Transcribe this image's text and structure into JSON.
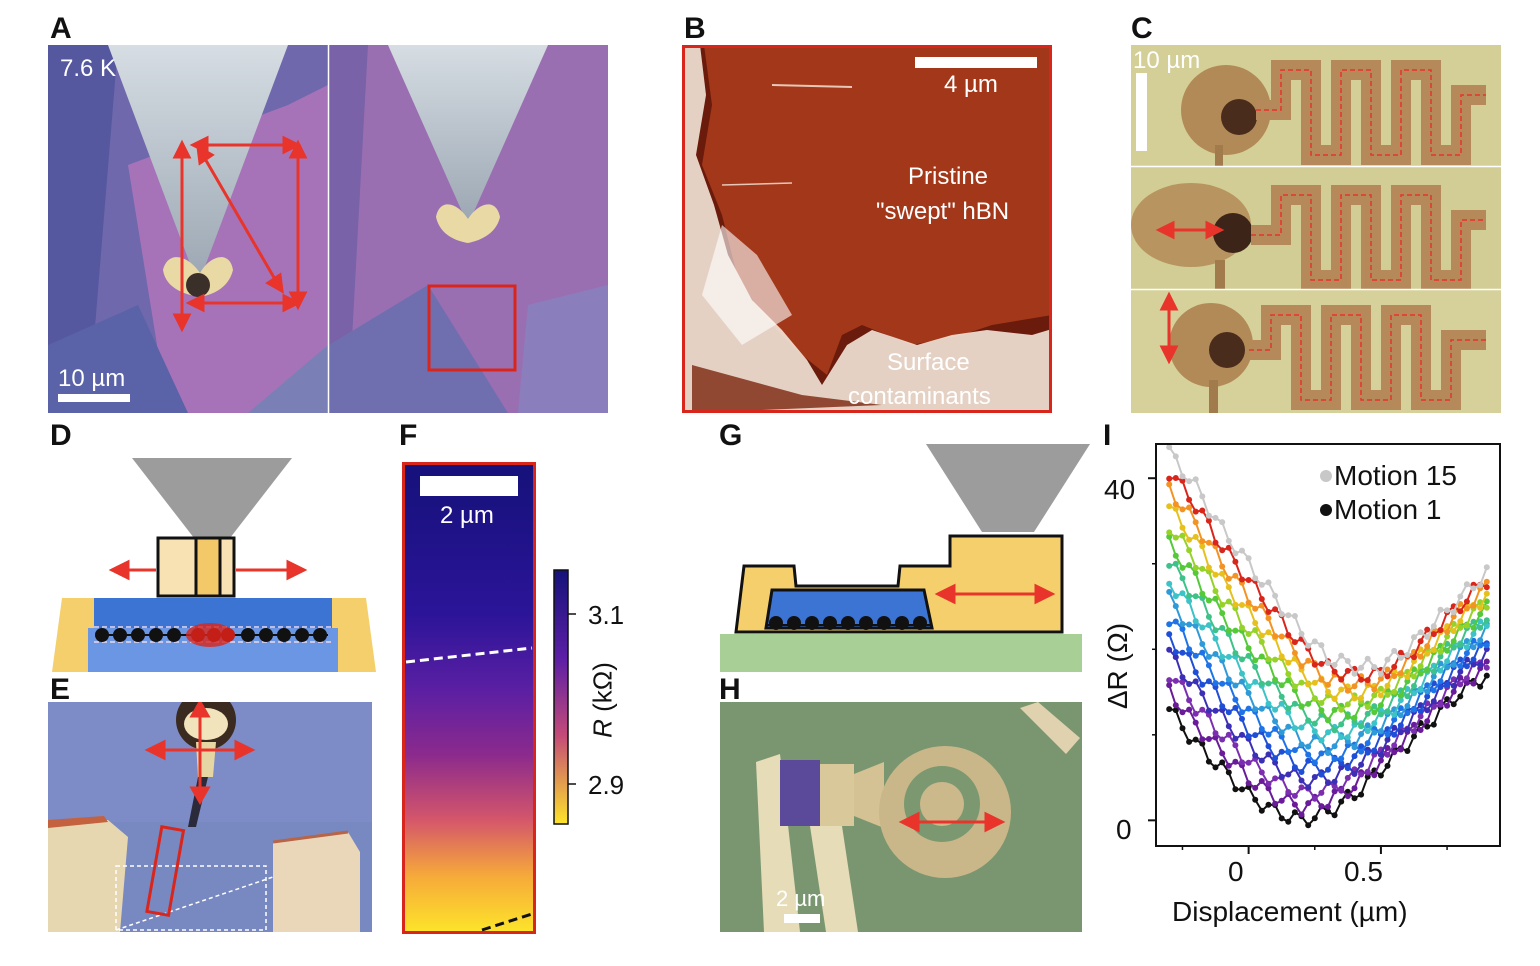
{
  "figure": {
    "panels": {
      "A": {
        "label": "A",
        "temperature": "7.6 K",
        "scale_bar": "10 µm"
      },
      "B": {
        "label": "B",
        "scale_bar": "4 µm",
        "annotation_top_line1": "Pristine",
        "annotation_top_line2": "\"swept\" hBN",
        "annotation_bottom_line1": "Surface",
        "annotation_bottom_line2": "contaminants"
      },
      "C": {
        "label": "C",
        "scale_bar": "10 µm"
      },
      "D": {
        "label": "D"
      },
      "E": {
        "label": "E"
      },
      "F": {
        "label": "F",
        "scale_bar": "2 µm",
        "colorbar_label_var": "R",
        "colorbar_label_unit": "(kΩ)",
        "colorbar_ticks": [
          "3.1",
          "2.9"
        ]
      },
      "G": {
        "label": "G"
      },
      "H": {
        "label": "H",
        "scale_bar": "2 µm"
      },
      "I": {
        "label": "I"
      }
    },
    "colors": {
      "arrow_red": "#e8342a",
      "frame_red": "#d9261c"
    }
  },
  "chart_data": {
    "type": "line",
    "xlabel": "Displacement (µm)",
    "ylabel": "ΔR (Ω)",
    "xlim": [
      -0.35,
      0.95
    ],
    "ylim": [
      -3,
      44
    ],
    "xticks": [
      "0",
      "0.5"
    ],
    "yticks": [
      "0",
      "40"
    ],
    "legend": {
      "placement": "top-right",
      "entries": [
        "Motion 15",
        "Motion 1"
      ]
    },
    "series_count": 15,
    "series": [
      {
        "name": "Motion 15",
        "color": "#c8c8c8",
        "x": [
          -0.3,
          -0.2,
          -0.1,
          0.0,
          0.1,
          0.2,
          0.3,
          0.4,
          0.5,
          0.6,
          0.7,
          0.8,
          0.9
        ],
        "y": [
          43,
          39,
          34,
          30,
          26,
          22,
          19,
          18,
          18,
          20,
          23,
          26,
          29
        ]
      },
      {
        "name": "Motion 1",
        "color": "#111111",
        "x": [
          -0.3,
          -0.2,
          -0.1,
          0.0,
          0.1,
          0.2,
          0.3,
          0.4,
          0.5,
          0.6,
          0.7,
          0.8,
          0.9
        ],
        "y": [
          13,
          9,
          6,
          3,
          1,
          0,
          1,
          3,
          6,
          9,
          12,
          15,
          17
        ]
      }
    ]
  }
}
